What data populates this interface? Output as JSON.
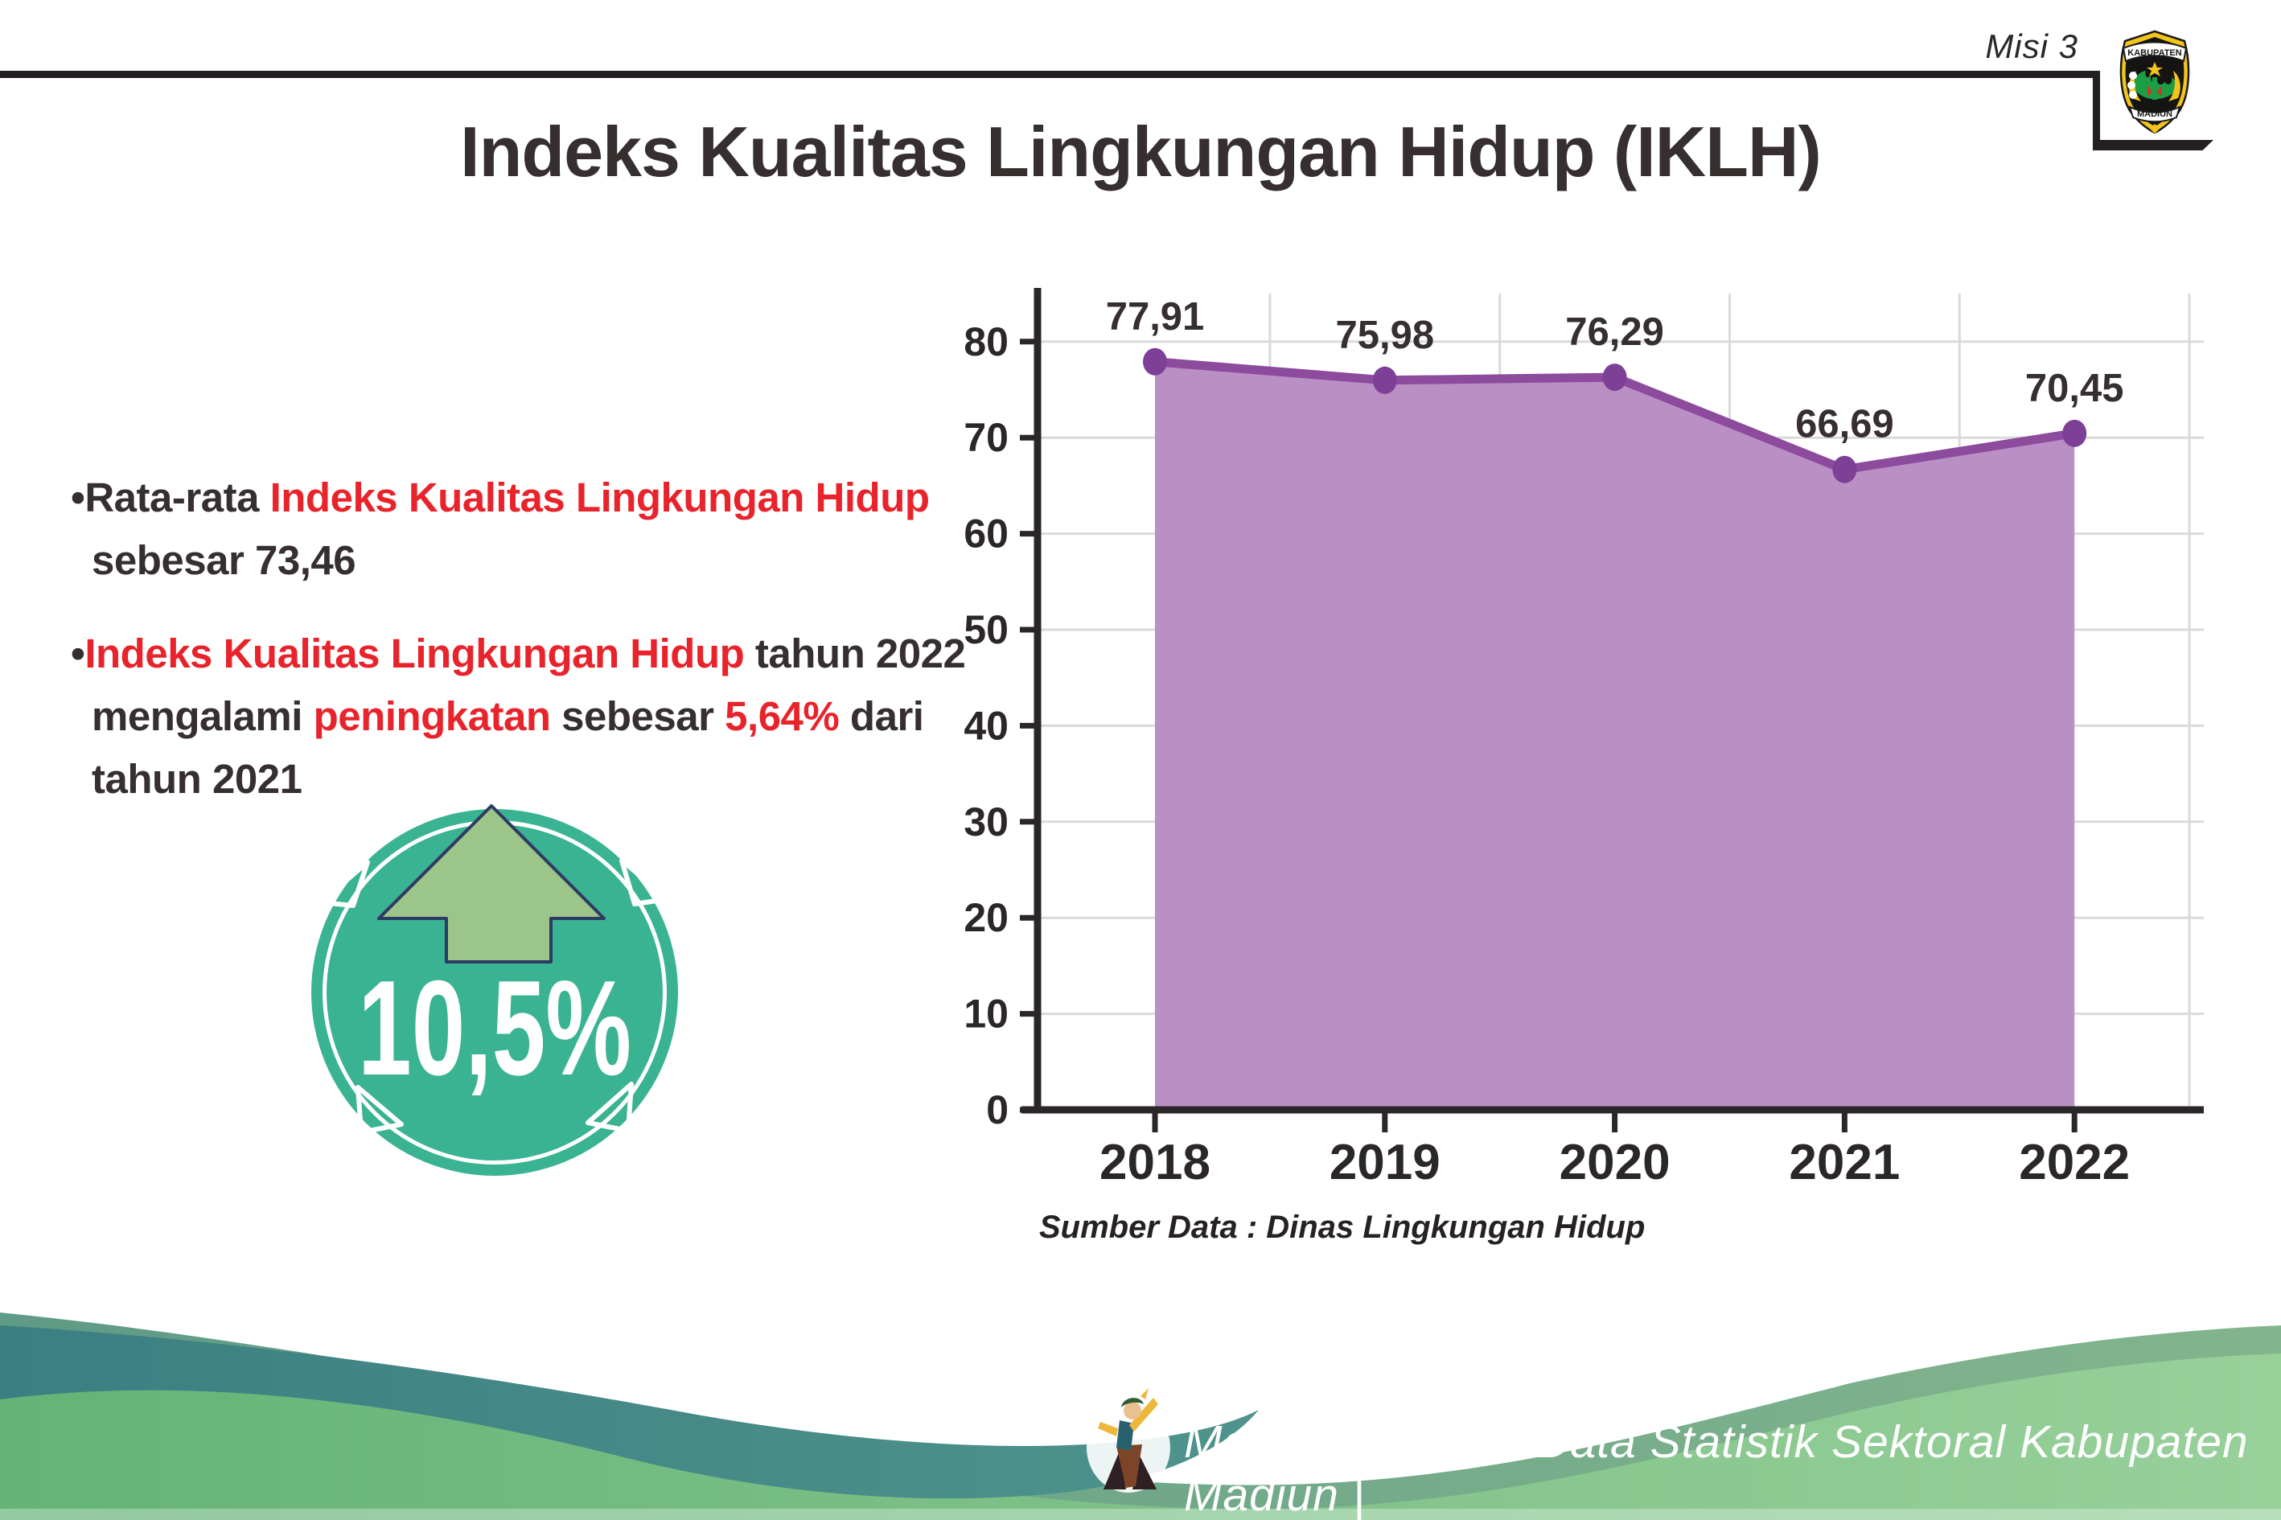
{
  "header": {
    "misi": "Misi 3",
    "title": "Indeks Kualitas Lingkungan Hidup (IKLH)",
    "logo": {
      "top": "KABUPATEN",
      "bottom": "MADIUN"
    }
  },
  "bullets": [
    {
      "lines": [
        {
          "indent": false,
          "segs": [
            {
              "t": "•Rata-rata ",
              "red": false
            },
            {
              "t": "Indeks Kualitas Lingkungan Hidup",
              "red": true
            }
          ]
        },
        {
          "indent": true,
          "segs": [
            {
              "t": "sebesar 73,46",
              "red": false
            }
          ]
        }
      ]
    },
    {
      "lines": [
        {
          "indent": false,
          "segs": [
            {
              "t": "•",
              "red": false
            },
            {
              "t": "Indeks Kualitas Lingkungan Hidup",
              "red": true
            },
            {
              "t": " tahun 2022",
              "red": false
            }
          ]
        },
        {
          "indent": true,
          "segs": [
            {
              "t": "mengalami ",
              "red": false
            },
            {
              "t": "peningkatan",
              "red": true
            },
            {
              "t": " sebesar ",
              "red": false
            },
            {
              "t": "5,64%",
              "red": true
            },
            {
              "t": " dari",
              "red": false
            }
          ]
        },
        {
          "indent": true,
          "segs": [
            {
              "t": "tahun 2021",
              "red": false
            }
          ]
        }
      ]
    }
  ],
  "badge": {
    "value": "10,5%"
  },
  "chart_data": {
    "type": "area",
    "categories": [
      "2018",
      "2019",
      "2020",
      "2021",
      "2022"
    ],
    "values": [
      77.91,
      75.98,
      76.29,
      66.69,
      70.45
    ],
    "labels": [
      "77,91",
      "75,98",
      "76,29",
      "66,69",
      "70,45"
    ],
    "ylim": [
      0,
      80
    ],
    "ytick_step": 10,
    "grid": true,
    "legend": "none",
    "source_note": "Sumber Data : Dinas Lingkungan Hidup",
    "line_color": "#8c4b9d",
    "fill_color": "#b98fc4",
    "marker_color": "#7e3f96",
    "axis_color": "#2b2627",
    "grid_color": "#dadada",
    "label_color": "#362e2f"
  },
  "footer": {
    "credit": "Media Infografis Data Statistik Sektoral Kabupaten Madiun |"
  },
  "colors": {
    "red": "#e8232b",
    "dark": "#362e2f",
    "badge_teal": "#3ab393",
    "arrow_green": "#9cc58a",
    "arrow_outline": "#2e3a63"
  }
}
